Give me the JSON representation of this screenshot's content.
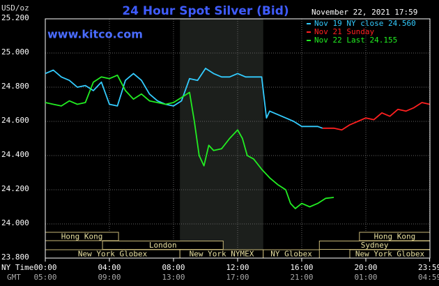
{
  "chart_data": {
    "type": "line",
    "title": "24 Hour Spot Silver (Bid)",
    "site": "www.kitco.com",
    "timestamp": "November 22, 2021 17:59",
    "y_label": "USD/oz",
    "x_row_labels": [
      "NY Time",
      "GMT"
    ],
    "xlim": [
      0,
      24
    ],
    "xticks": [
      {
        "value": 0,
        "label": "00:00"
      },
      {
        "value": 4,
        "label": "04:00"
      },
      {
        "value": 8,
        "label": "08:00"
      },
      {
        "value": 12,
        "label": "12:00"
      },
      {
        "value": 16,
        "label": "16:00"
      },
      {
        "value": 20,
        "label": "20:00"
      },
      {
        "value": 23.983,
        "label": "23:59"
      }
    ],
    "xticks_gmt": [
      "05:00",
      "09:00",
      "13:00",
      "17:00",
      "21:00",
      "01:00",
      "04:59"
    ],
    "ylim": [
      23.8,
      25.2
    ],
    "yticks": [
      {
        "value": 23.8,
        "label": "23.800"
      },
      {
        "value": 24.0,
        "label": "24.000"
      },
      {
        "value": 24.2,
        "label": "24.200"
      },
      {
        "value": 24.4,
        "label": "24.400"
      },
      {
        "value": 24.6,
        "label": "24.600"
      },
      {
        "value": 24.8,
        "label": "24.800"
      },
      {
        "value": 25.0,
        "label": "25.000"
      },
      {
        "value": 25.2,
        "label": "25.200"
      }
    ],
    "grid": true,
    "legend": "top-right",
    "shaded_x": [
      8.4,
      13.6
    ],
    "sessions": [
      {
        "name": "Hong Kong",
        "start": 0,
        "end": 4.57,
        "row": 0
      },
      {
        "name": "Hong Kong",
        "start": 19.6,
        "end": 24,
        "row": 0
      },
      {
        "name": "London",
        "start": 3.57,
        "end": 11.1,
        "row": 1
      },
      {
        "name": "Sydney",
        "start": 17.1,
        "end": 24,
        "row": 1
      },
      {
        "name": "New York Globex",
        "start": 0,
        "end": 8.4,
        "row": 2
      },
      {
        "name": "New York NYMEX",
        "start": 8.4,
        "end": 13.6,
        "row": 2
      },
      {
        "name": "NY Globex",
        "start": 13.6,
        "end": 17.1,
        "row": 2
      },
      {
        "name": "New York Globex",
        "start": 19,
        "end": 24,
        "row": 2
      }
    ],
    "series": [
      {
        "name": "Nov 19 NY close 24.560",
        "color": "#33ccff",
        "x": [
          0,
          0.5,
          1,
          1.5,
          2,
          2.5,
          3,
          3.5,
          4,
          4.5,
          5,
          5.5,
          6,
          6.5,
          7,
          7.5,
          8,
          8.5,
          9,
          9.5,
          10,
          10.5,
          11,
          11.5,
          12,
          12.5,
          13,
          13.5,
          13.8,
          14,
          14.5,
          15,
          15.5,
          16,
          16.5,
          17,
          17.3
        ],
        "values": [
          24.88,
          24.9,
          24.86,
          24.84,
          24.8,
          24.81,
          24.78,
          24.83,
          24.7,
          24.69,
          24.84,
          24.88,
          24.84,
          24.76,
          24.72,
          24.7,
          24.69,
          24.72,
          24.85,
          24.84,
          24.91,
          24.88,
          24.86,
          24.86,
          24.88,
          24.86,
          24.86,
          24.86,
          24.62,
          24.66,
          24.64,
          24.62,
          24.6,
          24.57,
          24.57,
          24.57,
          24.56
        ]
      },
      {
        "name": "Nov 21 Sunday",
        "color": "#ff2020",
        "x": [
          17.3,
          18,
          18.5,
          19,
          19.5,
          20,
          20.5,
          21,
          21.5,
          22,
          22.5,
          23,
          23.5,
          23.98
        ],
        "values": [
          24.56,
          24.56,
          24.55,
          24.58,
          24.6,
          24.62,
          24.61,
          24.65,
          24.63,
          24.67,
          24.66,
          24.68,
          24.71,
          24.7
        ]
      },
      {
        "name": "Nov 22 Last 24.155",
        "color": "#22ee22",
        "x": [
          0,
          0.5,
          1,
          1.5,
          2,
          2.5,
          3,
          3.5,
          4,
          4.5,
          5,
          5.5,
          6,
          6.5,
          7,
          7.5,
          8,
          8.5,
          9,
          9.3,
          9.6,
          9.9,
          10.2,
          10.5,
          11,
          11.5,
          12,
          12.3,
          12.6,
          13,
          13.5,
          14,
          14.5,
          15,
          15.3,
          15.6,
          16,
          16.5,
          17,
          17.5,
          18
        ],
        "values": [
          24.71,
          24.7,
          24.69,
          24.72,
          24.7,
          24.71,
          24.83,
          24.86,
          24.85,
          24.87,
          24.78,
          24.73,
          24.76,
          24.72,
          24.71,
          24.7,
          24.71,
          24.74,
          24.77,
          24.6,
          24.4,
          24.34,
          24.46,
          24.43,
          24.44,
          24.5,
          24.55,
          24.5,
          24.4,
          24.38,
          24.32,
          24.27,
          24.23,
          24.2,
          24.12,
          24.09,
          24.12,
          24.1,
          24.12,
          24.15,
          24.155
        ]
      }
    ]
  }
}
